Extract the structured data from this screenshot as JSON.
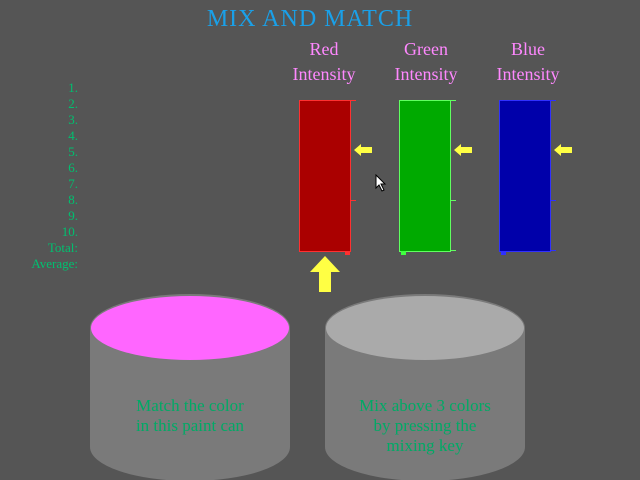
{
  "title": "MIX AND MATCH",
  "columns": [
    {
      "line1": "Red",
      "line2": "Intensity",
      "color": "#aa0000"
    },
    {
      "line1": "Green",
      "line2": "Intensity",
      "color": "#00aa00"
    },
    {
      "line1": "Blue",
      "line2": "Intensity",
      "color": "#0000aa"
    }
  ],
  "rows": [
    "1.",
    "2.",
    "3.",
    "4.",
    "5.",
    "6.",
    "7.",
    "8.",
    "9.",
    "10.",
    "Total:",
    "Average:"
  ],
  "target_can": {
    "line1": "Match the color",
    "line2": "in this paint can",
    "paint_color": "#ff66ff"
  },
  "mix_can": {
    "line1": "Mix above 3 colors",
    "line2": "by pressing the",
    "line3": "mixing key",
    "paint_color": "#aaaaaa"
  },
  "colors": {
    "background": "#555555",
    "title": "#1aa0e8",
    "labels": "#ff88ff",
    "rows": "#00c070",
    "arrow": "#ffff44"
  },
  "icons": {
    "selector_arrow": "arrow-up-icon",
    "level_arrows": "arrow-left-icon",
    "pointer": "mouse-pointer-icon"
  }
}
